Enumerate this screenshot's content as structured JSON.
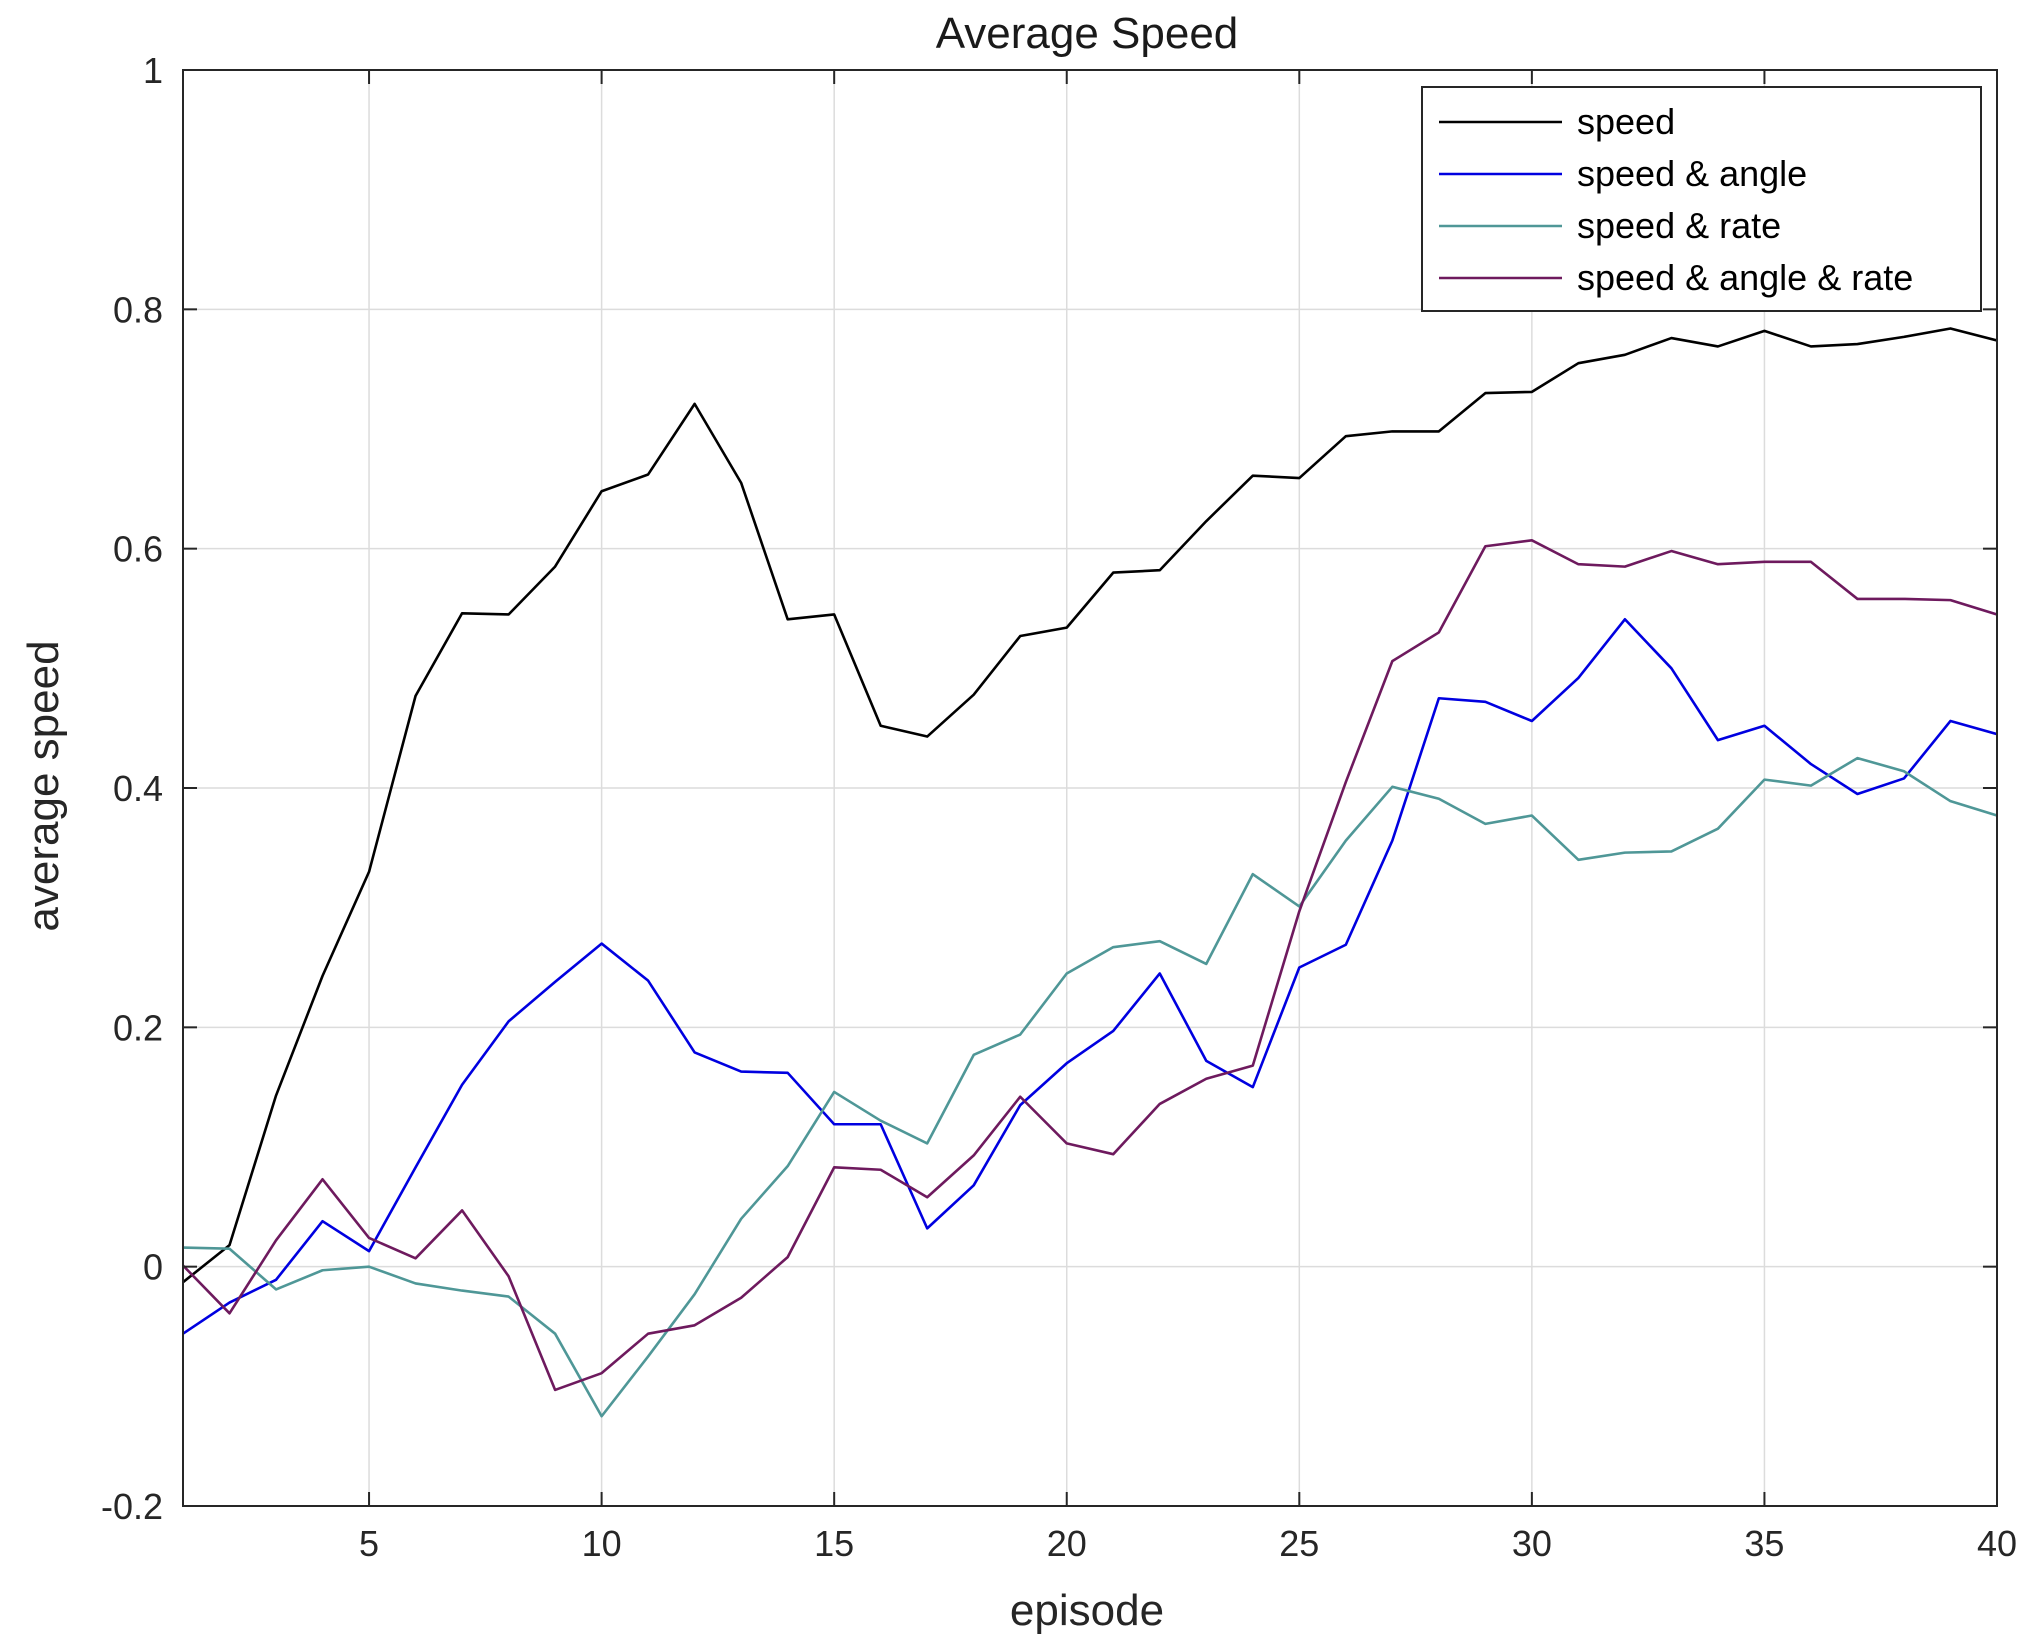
{
  "chart_data": {
    "type": "line",
    "title": "Average Speed",
    "xlabel": "episode",
    "ylabel": "average speed",
    "xlim": [
      1,
      40
    ],
    "ylim": [
      -0.2,
      1
    ],
    "grid": true,
    "legend_position": "top-right",
    "x_ticks": [
      5,
      10,
      15,
      20,
      25,
      30,
      35,
      40
    ],
    "x_tick_labels": [
      "5",
      "10",
      "15",
      "20",
      "25",
      "30",
      "35",
      "40"
    ],
    "y_ticks": [
      -0.2,
      0,
      0.2,
      0.4,
      0.6,
      0.8,
      1
    ],
    "y_tick_labels": [
      "-0.2",
      "0",
      "0.2",
      "0.4",
      "0.6",
      "0.8",
      "1"
    ],
    "x": [
      1,
      2,
      3,
      4,
      5,
      6,
      7,
      8,
      9,
      10,
      11,
      12,
      13,
      14,
      15,
      16,
      17,
      18,
      19,
      20,
      21,
      22,
      23,
      24,
      25,
      26,
      27,
      28,
      29,
      30,
      31,
      32,
      33,
      34,
      35,
      36,
      37,
      38,
      39,
      40
    ],
    "series": [
      {
        "name": "speed",
        "color": "#000000",
        "values": [
          -0.013,
          0.018,
          0.143,
          0.243,
          0.33,
          0.477,
          0.546,
          0.545,
          0.585,
          0.648,
          0.662,
          0.721,
          0.655,
          0.541,
          0.545,
          0.452,
          0.443,
          0.478,
          0.527,
          0.534,
          0.58,
          0.582,
          0.623,
          0.661,
          0.659,
          0.694,
          0.698,
          0.698,
          0.73,
          0.731,
          0.755,
          0.762,
          0.776,
          0.769,
          0.782,
          0.769,
          0.771,
          0.777,
          0.784,
          0.774
        ]
      },
      {
        "name": "speed & angle",
        "color": "#0000e0",
        "values": [
          -0.056,
          -0.03,
          -0.011,
          0.038,
          0.013,
          0.083,
          0.152,
          0.205,
          0.238,
          0.27,
          0.239,
          0.179,
          0.163,
          0.162,
          0.119,
          0.119,
          0.032,
          0.068,
          0.135,
          0.17,
          0.197,
          0.245,
          0.172,
          0.15,
          0.25,
          0.269,
          0.356,
          0.475,
          0.472,
          0.456,
          0.492,
          0.541,
          0.5,
          0.44,
          0.452,
          0.42,
          0.395,
          0.408,
          0.456,
          0.445
        ]
      },
      {
        "name": "speed & rate",
        "color": "#4f9797",
        "values": [
          0.016,
          0.015,
          -0.019,
          -0.003,
          0.0,
          -0.014,
          -0.02,
          -0.025,
          -0.056,
          -0.125,
          -0.075,
          -0.023,
          0.04,
          0.084,
          0.146,
          0.122,
          0.103,
          0.177,
          0.194,
          0.245,
          0.267,
          0.272,
          0.253,
          0.328,
          0.301,
          0.356,
          0.401,
          0.391,
          0.37,
          0.377,
          0.34,
          0.346,
          0.347,
          0.366,
          0.407,
          0.402,
          0.425,
          0.414,
          0.389,
          0.377
        ]
      },
      {
        "name": "speed & angle & rate",
        "color": "#6e1a5e",
        "values": [
          0.001,
          -0.039,
          0.022,
          0.073,
          0.024,
          0.007,
          0.047,
          -0.008,
          -0.103,
          -0.089,
          -0.056,
          -0.049,
          -0.026,
          0.008,
          0.083,
          0.081,
          0.058,
          0.093,
          0.142,
          0.103,
          0.094,
          0.136,
          0.157,
          0.168,
          0.297,
          0.405,
          0.506,
          0.53,
          0.602,
          0.607,
          0.587,
          0.585,
          0.598,
          0.587,
          0.589,
          0.589,
          0.558,
          0.558,
          0.557,
          0.545
        ]
      }
    ]
  }
}
